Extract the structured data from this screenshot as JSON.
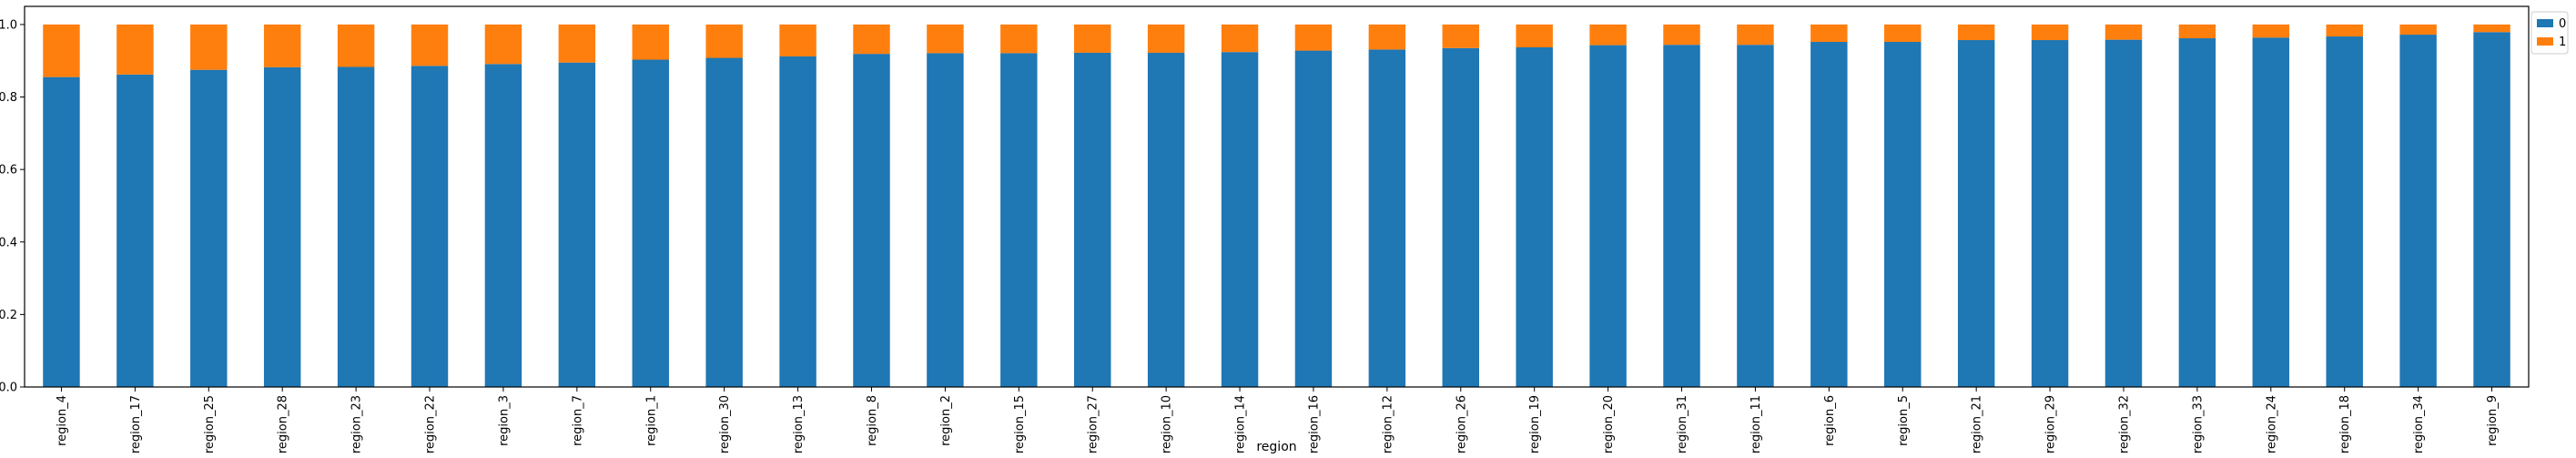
{
  "chart_data": {
    "type": "bar",
    "stacked": true,
    "title": "",
    "xlabel": "region",
    "ylabel": "",
    "ylim": [
      0,
      1.05
    ],
    "yticks": [
      0.0,
      0.2,
      0.4,
      0.6,
      0.8,
      1.0
    ],
    "ytick_labels": [
      "0.0",
      "0.2",
      "0.4",
      "0.6",
      "0.8",
      "1.0"
    ],
    "grid": false,
    "legend_position": "outside upper right",
    "categories": [
      "region_4",
      "region_17",
      "region_25",
      "region_28",
      "region_23",
      "region_22",
      "region_3",
      "region_7",
      "region_1",
      "region_30",
      "region_13",
      "region_8",
      "region_2",
      "region_15",
      "region_27",
      "region_10",
      "region_14",
      "region_16",
      "region_12",
      "region_26",
      "region_19",
      "region_20",
      "region_31",
      "region_11",
      "region_6",
      "region_5",
      "region_21",
      "region_29",
      "region_32",
      "region_33",
      "region_24",
      "region_18",
      "region_34",
      "region_9"
    ],
    "series": [
      {
        "name": "0",
        "color": "#1f77b4",
        "values": [
          0.855,
          0.862,
          0.875,
          0.882,
          0.883,
          0.886,
          0.891,
          0.895,
          0.903,
          0.908,
          0.912,
          0.919,
          0.921,
          0.921,
          0.922,
          0.922,
          0.924,
          0.928,
          0.931,
          0.935,
          0.937,
          0.943,
          0.944,
          0.944,
          0.952,
          0.952,
          0.957,
          0.957,
          0.958,
          0.962,
          0.964,
          0.967,
          0.972,
          0.979
        ]
      },
      {
        "name": "1",
        "color": "#ff7f0e",
        "values": [
          0.145,
          0.138,
          0.125,
          0.118,
          0.117,
          0.114,
          0.109,
          0.105,
          0.097,
          0.092,
          0.088,
          0.081,
          0.079,
          0.079,
          0.078,
          0.078,
          0.076,
          0.072,
          0.069,
          0.065,
          0.063,
          0.057,
          0.056,
          0.056,
          0.048,
          0.048,
          0.043,
          0.043,
          0.042,
          0.038,
          0.036,
          0.033,
          0.028,
          0.021
        ]
      }
    ]
  }
}
